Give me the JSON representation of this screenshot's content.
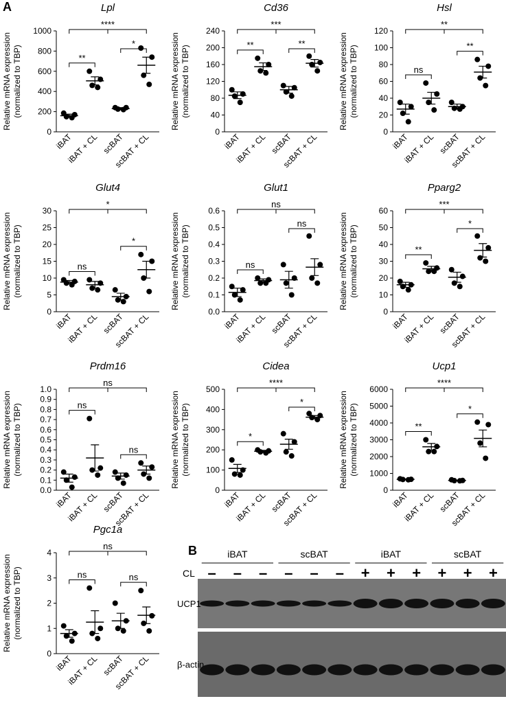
{
  "panel_label": "A",
  "chart_data": [
    {
      "type": "dotplot",
      "title": "Lpl",
      "ylabel": [
        "Relative mRNA expression",
        "(normalized to TBP)"
      ],
      "categories": [
        "iBAT",
        "iBAT + CL",
        "scBAT",
        "scBAT + CL"
      ],
      "points": [
        [
          185,
          170,
          150,
          140
        ],
        [
          600,
          520,
          460,
          440
        ],
        [
          240,
          240,
          225,
          220
        ],
        [
          830,
          740,
          560,
          470
        ]
      ],
      "means": [
        160,
        505,
        230,
        660
      ],
      "sem": [
        15,
        40,
        10,
        80
      ],
      "ylim": [
        0,
        1000
      ],
      "yticks": [
        0,
        200,
        400,
        600,
        800,
        1000
      ],
      "color": "#000000",
      "comparisons": [
        {
          "groups": [
            0,
            1
          ],
          "label": "**"
        },
        {
          "groups": [
            2,
            3
          ],
          "label": "*"
        },
        {
          "groups": [
            0,
            1,
            2,
            3
          ],
          "label": "****"
        }
      ]
    },
    {
      "type": "dotplot",
      "title": "Cd36",
      "ylabel": [
        "Relative mRNA expression",
        "(normalized to TBP)"
      ],
      "categories": [
        "iBAT",
        "iBAT + CL",
        "scBAT",
        "scBAT + CL"
      ],
      "points": [
        [
          100,
          90,
          85,
          70
        ],
        [
          175,
          160,
          145,
          140
        ],
        [
          110,
          105,
          95,
          85
        ],
        [
          180,
          165,
          160,
          145
        ]
      ],
      "means": [
        87,
        155,
        100,
        163
      ],
      "sem": [
        8,
        9,
        8,
        9
      ],
      "ylim": [
        0,
        240
      ],
      "yticks": [
        0,
        40,
        80,
        120,
        160,
        200,
        240
      ],
      "color": "#000000",
      "comparisons": [
        {
          "groups": [
            0,
            1
          ],
          "label": "**"
        },
        {
          "groups": [
            2,
            3
          ],
          "label": "**"
        },
        {
          "groups": [
            0,
            1,
            2,
            3
          ],
          "label": "***"
        }
      ]
    },
    {
      "type": "dotplot",
      "title": "Hsl",
      "ylabel": [
        "Relative mRNA expression",
        "(normalized to TBP)"
      ],
      "categories": [
        "iBAT",
        "iBAT + CL",
        "scBAT",
        "scBAT + CL"
      ],
      "points": [
        [
          35,
          30,
          22,
          12
        ],
        [
          58,
          45,
          35,
          26
        ],
        [
          35,
          30,
          28,
          27
        ],
        [
          86,
          78,
          64,
          55
        ]
      ],
      "means": [
        27,
        40,
        30,
        71
      ],
      "sem": [
        6,
        7,
        3,
        7
      ],
      "ylim": [
        0,
        120
      ],
      "yticks": [
        0,
        20,
        40,
        60,
        80,
        100,
        120
      ],
      "color": "#000000",
      "comparisons": [
        {
          "groups": [
            0,
            1
          ],
          "label": "ns"
        },
        {
          "groups": [
            2,
            3
          ],
          "label": "**"
        },
        {
          "groups": [
            0,
            1,
            2,
            3
          ],
          "label": "**"
        }
      ]
    },
    {
      "type": "dotplot",
      "title": "Glut4",
      "ylabel": [
        "Relative mRNA expression",
        "(normalized to TBP)"
      ],
      "categories": [
        "iBAT",
        "iBAT + CL",
        "scBAT",
        "scBAT + CL"
      ],
      "points": [
        [
          9.5,
          9,
          8.5,
          8
        ],
        [
          9.5,
          8.5,
          7,
          6.5
        ],
        [
          6.5,
          4.5,
          3.5,
          3
        ],
        [
          17,
          15,
          10,
          6
        ]
      ],
      "means": [
        8.8,
        8,
        4.5,
        12.5
      ],
      "sem": [
        0.5,
        1,
        1,
        2.5
      ],
      "ylim": [
        0,
        30
      ],
      "yticks": [
        0,
        5,
        10,
        15,
        20,
        25,
        30
      ],
      "color": "#000000",
      "comparisons": [
        {
          "groups": [
            0,
            1
          ],
          "label": "ns"
        },
        {
          "groups": [
            2,
            3
          ],
          "label": "*"
        },
        {
          "groups": [
            0,
            1,
            2,
            3
          ],
          "label": "*"
        }
      ]
    },
    {
      "type": "dotplot",
      "title": "Glut1",
      "ylabel": [
        "Relative mRNA expression",
        "(normalized to TBP)"
      ],
      "categories": [
        "iBAT",
        "iBAT + CL",
        "scBAT",
        "scBAT + CL"
      ],
      "points": [
        [
          0.15,
          0.13,
          0.1,
          0.07
        ],
        [
          0.2,
          0.19,
          0.17,
          0.17
        ],
        [
          0.28,
          0.2,
          0.17,
          0.1
        ],
        [
          0.45,
          0.28,
          0.2,
          0.17
        ]
      ],
      "means": [
        0.115,
        0.185,
        0.19,
        0.265
      ],
      "sem": [
        0.025,
        0.01,
        0.05,
        0.05
      ],
      "ylim": [
        0,
        0.6
      ],
      "yticks": [
        {
          "value": 0,
          "label": "0.0"
        },
        0.1,
        0.2,
        0.3,
        0.4,
        0.5,
        0.6
      ],
      "color": "#000000",
      "comparisons": [
        {
          "groups": [
            0,
            1
          ],
          "label": "ns"
        },
        {
          "groups": [
            2,
            3
          ],
          "label": "ns"
        },
        {
          "groups": [
            0,
            1,
            2,
            3
          ],
          "label": "ns"
        }
      ]
    },
    {
      "type": "dotplot",
      "title": "Pparg2",
      "ylabel": [
        "Relative mRNA expression",
        "(normalized to TBP)"
      ],
      "categories": [
        "iBAT",
        "iBAT + CL",
        "scBAT",
        "scBAT + CL"
      ],
      "points": [
        [
          18,
          16,
          15,
          13
        ],
        [
          29,
          26,
          24,
          24
        ],
        [
          25,
          21,
          17,
          15
        ],
        [
          45,
          38,
          32,
          30
        ]
      ],
      "means": [
        16,
        25.5,
        20.5,
        36.5
      ],
      "sem": [
        1.5,
        1.5,
        3,
        4
      ],
      "ylim": [
        0,
        60
      ],
      "yticks": [
        0,
        10,
        20,
        30,
        40,
        50,
        60
      ],
      "color": "#000000",
      "comparisons": [
        {
          "groups": [
            0,
            1
          ],
          "label": "**"
        },
        {
          "groups": [
            2,
            3
          ],
          "label": "*"
        },
        {
          "groups": [
            0,
            1,
            2,
            3
          ],
          "label": "***"
        }
      ]
    },
    {
      "type": "dotplot",
      "title": "Prdm16",
      "ylabel": [
        "Relative mRNA expression",
        "(normalized to TBP)"
      ],
      "categories": [
        "iBAT",
        "iBAT + CL",
        "scBAT",
        "scBAT + CL"
      ],
      "points": [
        [
          0.18,
          0.13,
          0.1,
          0.03
        ],
        [
          0.71,
          0.22,
          0.2,
          0.15
        ],
        [
          0.18,
          0.15,
          0.12,
          0.07
        ],
        [
          0.27,
          0.23,
          0.16,
          0.12
        ]
      ],
      "means": [
        0.12,
        0.32,
        0.14,
        0.2
      ],
      "sem": [
        0.04,
        0.13,
        0.03,
        0.04
      ],
      "ylim": [
        0,
        1
      ],
      "yticks": [
        {
          "value": 0,
          "label": "0.0"
        },
        0.1,
        0.2,
        0.3,
        0.4,
        0.5,
        0.6,
        0.7,
        0.8,
        0.9,
        {
          "value": 1,
          "label": "1.0"
        }
      ],
      "color": "#000000",
      "comparisons": [
        {
          "groups": [
            0,
            1
          ],
          "label": "ns"
        },
        {
          "groups": [
            2,
            3
          ],
          "label": "ns"
        },
        {
          "groups": [
            0,
            1,
            2,
            3
          ],
          "label": "ns"
        }
      ]
    },
    {
      "type": "dotplot",
      "title": "Cidea",
      "ylabel": [
        "Relative mRNA expression",
        "(normalized to TBP)"
      ],
      "categories": [
        "iBAT",
        "iBAT + CL",
        "scBAT",
        "scBAT + CL"
      ],
      "points": [
        [
          150,
          100,
          80,
          75
        ],
        [
          200,
          195,
          190,
          185
        ],
        [
          280,
          240,
          190,
          170
        ],
        [
          380,
          370,
          360,
          350
        ]
      ],
      "means": [
        108,
        193,
        228,
        362
      ],
      "sem": [
        20,
        5,
        25,
        8
      ],
      "ylim": [
        0,
        500
      ],
      "yticks": [
        0,
        100,
        200,
        300,
        400,
        500
      ],
      "color": "#000000",
      "comparisons": [
        {
          "groups": [
            0,
            1
          ],
          "label": "*"
        },
        {
          "groups": [
            2,
            3
          ],
          "label": "*"
        },
        {
          "groups": [
            0,
            1,
            2,
            3
          ],
          "label": "****"
        }
      ]
    },
    {
      "type": "dotplot",
      "title": "Ucp1",
      "ylabel": [
        "Relative mRNA expression",
        "(normalized to TBP)"
      ],
      "categories": [
        "iBAT",
        "iBAT + CL",
        "scBAT",
        "scBAT + CL"
      ],
      "points": [
        [
          680,
          650,
          640,
          620
        ],
        [
          3000,
          2600,
          2300,
          2300
        ],
        [
          620,
          580,
          570,
          560
        ],
        [
          4050,
          3900,
          2800,
          1900
        ]
      ],
      "means": [
        650,
        2580,
        580,
        3080
      ],
      "sem": [
        20,
        200,
        15,
        500
      ],
      "ylim": [
        0,
        6000
      ],
      "yticks": [
        0,
        1000,
        2000,
        3000,
        4000,
        5000,
        6000
      ],
      "color": "#000000",
      "comparisons": [
        {
          "groups": [
            0,
            1
          ],
          "label": "**"
        },
        {
          "groups": [
            2,
            3
          ],
          "label": "*"
        },
        {
          "groups": [
            0,
            1,
            2,
            3
          ],
          "label": "****"
        }
      ]
    },
    {
      "type": "dotplot",
      "title": "Pgc1a",
      "ylabel": [
        "Relative mRNA expression",
        "(normalized to TBP)"
      ],
      "categories": [
        "iBAT",
        "iBAT + CL",
        "scBAT",
        "scBAT + CL"
      ],
      "points": [
        [
          1.1,
          0.8,
          0.7,
          0.5
        ],
        [
          2.6,
          1,
          0.8,
          0.6
        ],
        [
          2,
          1.3,
          1,
          0.9
        ],
        [
          2.5,
          1.5,
          1.2,
          0.9
        ]
      ],
      "means": [
        0.8,
        1.25,
        1.3,
        1.52
      ],
      "sem": [
        0.15,
        0.45,
        0.3,
        0.33
      ],
      "ylim": [
        0,
        4
      ],
      "yticks": [
        0,
        1,
        2,
        3,
        4
      ],
      "color": "#000000",
      "comparisons": [
        {
          "groups": [
            0,
            1
          ],
          "label": "ns"
        },
        {
          "groups": [
            2,
            3
          ],
          "label": "ns"
        },
        {
          "groups": [
            0,
            1,
            2,
            3
          ],
          "label": "ns"
        }
      ]
    }
  ],
  "blot": {
    "panel_label": "B",
    "groups": [
      "iBAT",
      "scBAT",
      "iBAT",
      "scBAT"
    ],
    "treatment_label": "CL",
    "treatment": [
      "–",
      "–",
      "–",
      "–",
      "–",
      "–",
      "+",
      "+",
      "+",
      "+",
      "+",
      "+"
    ],
    "rows": [
      "UCP1",
      "β-actin"
    ]
  }
}
